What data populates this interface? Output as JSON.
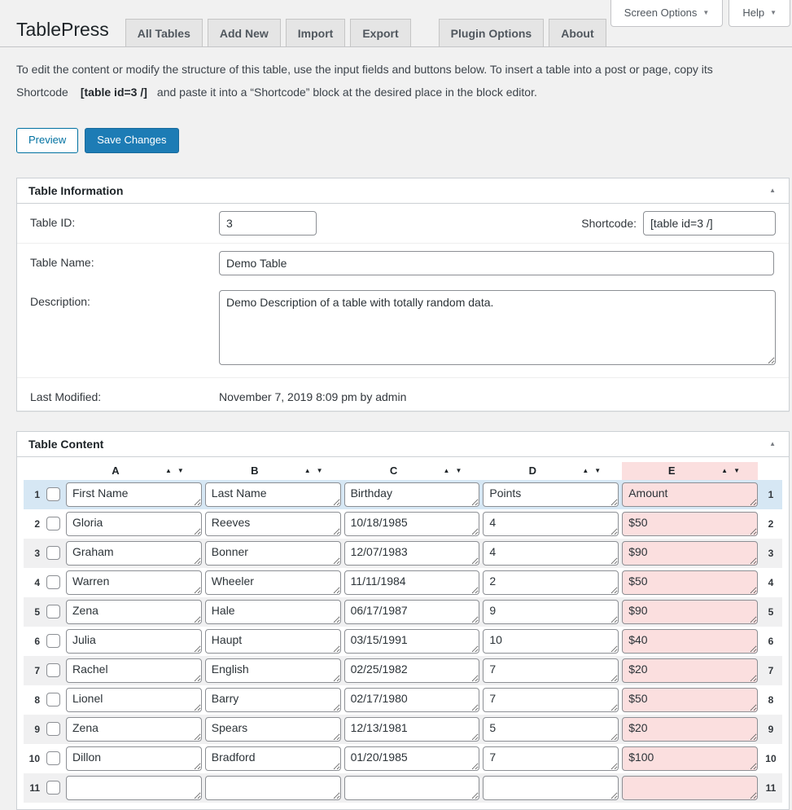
{
  "header": {
    "title": "TablePress",
    "tabs": [
      "All Tables",
      "Add New",
      "Import",
      "Export",
      "Plugin Options",
      "About"
    ],
    "screen_options_label": "Screen Options",
    "help_label": "Help"
  },
  "intro": {
    "text_before": "To edit the content or modify the structure of this table, use the input fields and buttons below. To insert a table into a post or page, copy its Shortcode",
    "shortcode": "[table id=3 /]",
    "text_after": "and paste it into a “Shortcode” block at the desired place in the block editor."
  },
  "actions": {
    "preview_label": "Preview",
    "save_label": "Save Changes"
  },
  "table_information": {
    "title": "Table Information",
    "table_id_label": "Table ID:",
    "table_id": "3",
    "shortcode_label": "Shortcode:",
    "shortcode_value": "[table id=3 /]",
    "name_label": "Table Name:",
    "name": "Demo Table",
    "description_label": "Description:",
    "description": "Demo Description of a table with totally random data.",
    "last_modified_label": "Last Modified:",
    "last_modified": "November 7, 2019 8:09 pm by admin"
  },
  "table_content": {
    "title": "Table Content",
    "columns": [
      "A",
      "B",
      "C",
      "D",
      "E"
    ],
    "highlighted_column": "E",
    "rows": [
      {
        "num": 1,
        "cells": [
          "First Name",
          "Last Name",
          "Birthday",
          "Points",
          "Amount"
        ]
      },
      {
        "num": 2,
        "cells": [
          "Gloria",
          "Reeves",
          "10/18/1985",
          "4",
          "$50"
        ]
      },
      {
        "num": 3,
        "cells": [
          "Graham",
          "Bonner",
          "12/07/1983",
          "4",
          "$90"
        ]
      },
      {
        "num": 4,
        "cells": [
          "Warren",
          "Wheeler",
          "11/11/1984",
          "2",
          "$50"
        ]
      },
      {
        "num": 5,
        "cells": [
          "Zena",
          "Hale",
          "06/17/1987",
          "9",
          "$90"
        ]
      },
      {
        "num": 6,
        "cells": [
          "Julia",
          "Haupt",
          "03/15/1991",
          "10",
          "$40"
        ]
      },
      {
        "num": 7,
        "cells": [
          "Rachel",
          "English",
          "02/25/1982",
          "7",
          "$20"
        ]
      },
      {
        "num": 8,
        "cells": [
          "Lionel",
          "Barry",
          "02/17/1980",
          "7",
          "$50"
        ]
      },
      {
        "num": 9,
        "cells": [
          "Zena",
          "Spears",
          "12/13/1981",
          "5",
          "$20"
        ]
      },
      {
        "num": 10,
        "cells": [
          "Dillon",
          "Bradford",
          "01/20/1985",
          "7",
          "$100"
        ]
      },
      {
        "num": 11,
        "cells": [
          "",
          "",
          "",
          "",
          ""
        ]
      }
    ]
  },
  "colors": {
    "page_background": "#f1f1f1",
    "primary_button": "#1d7cb5",
    "secondary_button_accent": "#0071a1",
    "header_row_highlight": "#d6e7f4",
    "stripe_row": "#f0f0f1",
    "selected_column_highlight": "#fbdfdf",
    "postbox_border": "#ccd0d4"
  }
}
